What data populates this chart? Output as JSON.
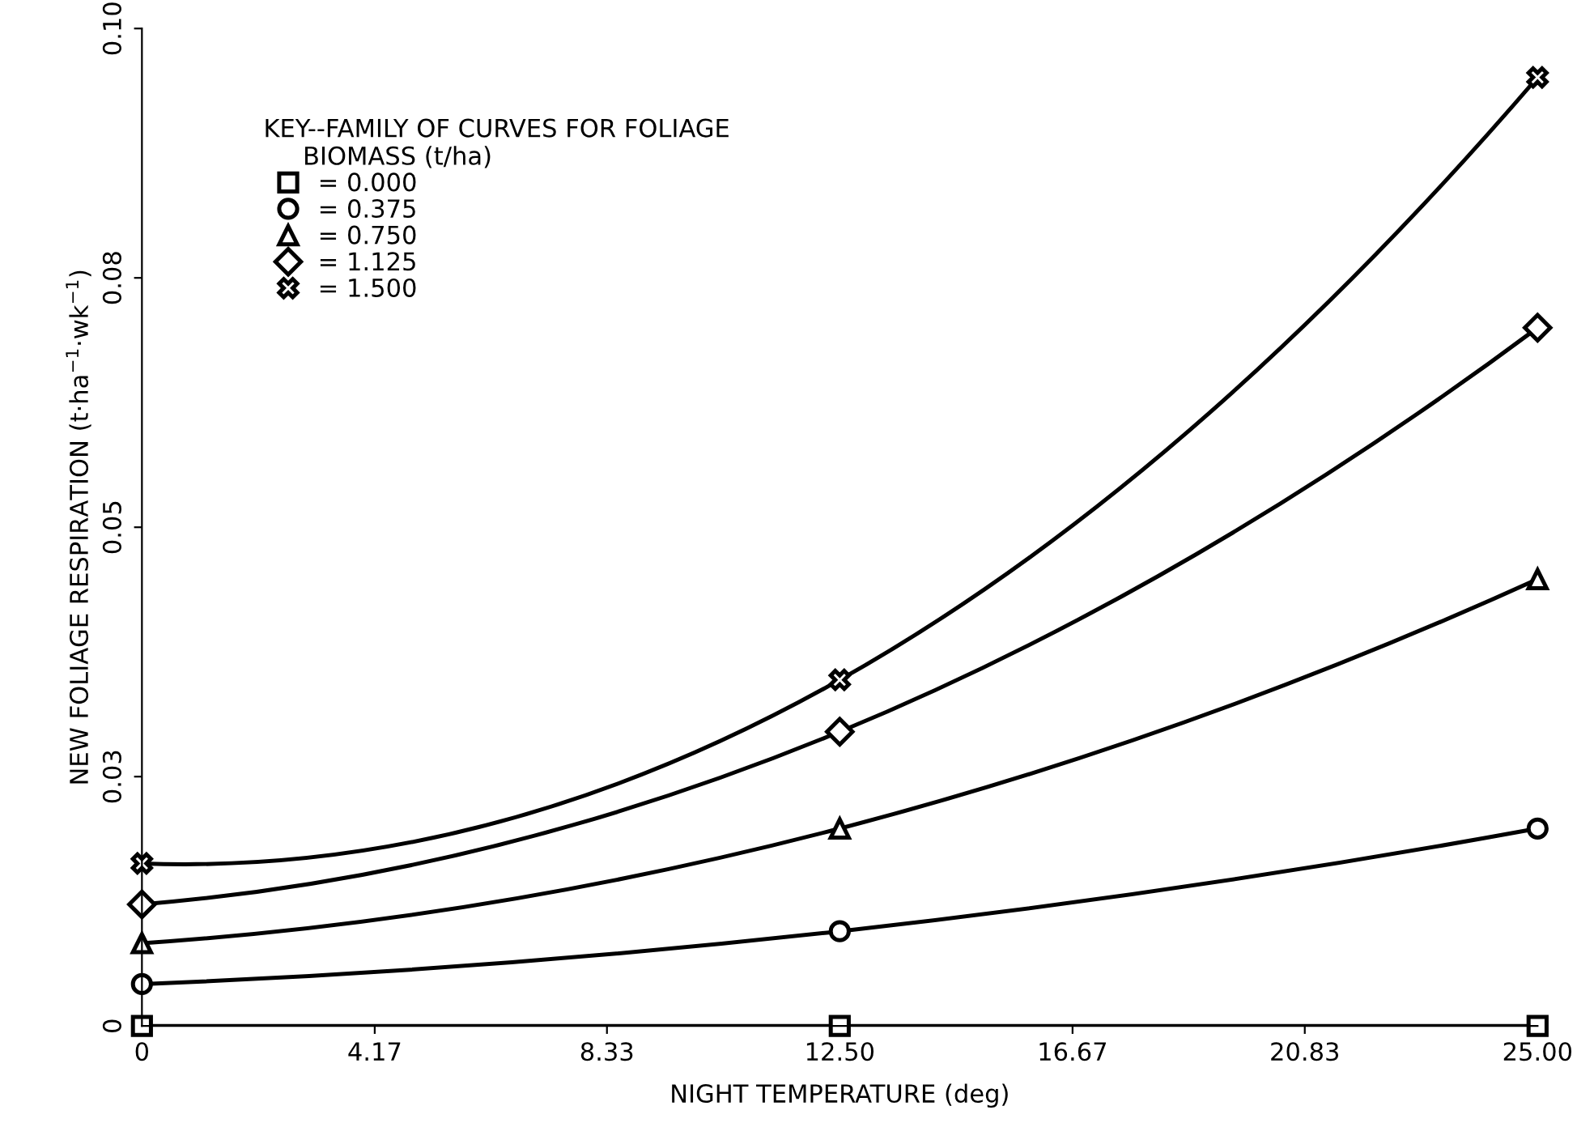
{
  "chart_data": {
    "type": "line",
    "xlabel": "NIGHT TEMPERATURE (deg)",
    "ylabel": "NEW FOLIAGE RESPIRATION (t·ha$^{−1}$·wk$^{−1}$)",
    "legend_title": "KEY--FAMILY OF CURVES FOR FOLIAGE\n     BIOMASS (t/ha)",
    "x": [
      0,
      12.5,
      25
    ],
    "series": [
      {
        "name": "= 0.000",
        "color": "#000000",
        "marker": "square",
        "values": [
          0,
          0,
          0
        ]
      },
      {
        "name": "= 0.375",
        "color": "#000000",
        "marker": "circle",
        "values": [
          0.0042,
          0.0095,
          0.0198
        ]
      },
      {
        "name": "= 0.750",
        "color": "#000000",
        "marker": "triangle",
        "values": [
          0.0083,
          0.0198,
          0.0448
        ]
      },
      {
        "name": "= 1.125",
        "color": "#000000",
        "marker": "diamond",
        "values": [
          0.0122,
          0.0295,
          0.07
        ]
      },
      {
        "name": "= 1.500",
        "color": "#000000",
        "marker": "cross",
        "values": [
          0.0163,
          0.0347,
          0.0951
        ]
      }
    ],
    "xlim": [
      0,
      25
    ],
    "xticks": [
      0,
      {
        "value": 4.17,
        "label": "4.17"
      },
      {
        "value": 8.33,
        "label": "8.33"
      },
      {
        "value": 12.5,
        "label": "12.50"
      },
      {
        "value": 16.67,
        "label": "16.67"
      },
      {
        "value": 20.83,
        "label": "20.83"
      },
      {
        "value": 25,
        "label": "25.00"
      }
    ],
    "ylim": [
      0,
      0.1
    ],
    "yticks": [
      0,
      {
        "value": 0.025,
        "label": "0.03"
      },
      {
        "value": 0.05,
        "label": "0.05"
      },
      {
        "value": 0.075,
        "label": "0.08"
      },
      {
        "value": 0.1,
        "label": "0.10"
      }
    ],
    "legend": "top left",
    "grid": false,
    "line_style": "solid"
  }
}
